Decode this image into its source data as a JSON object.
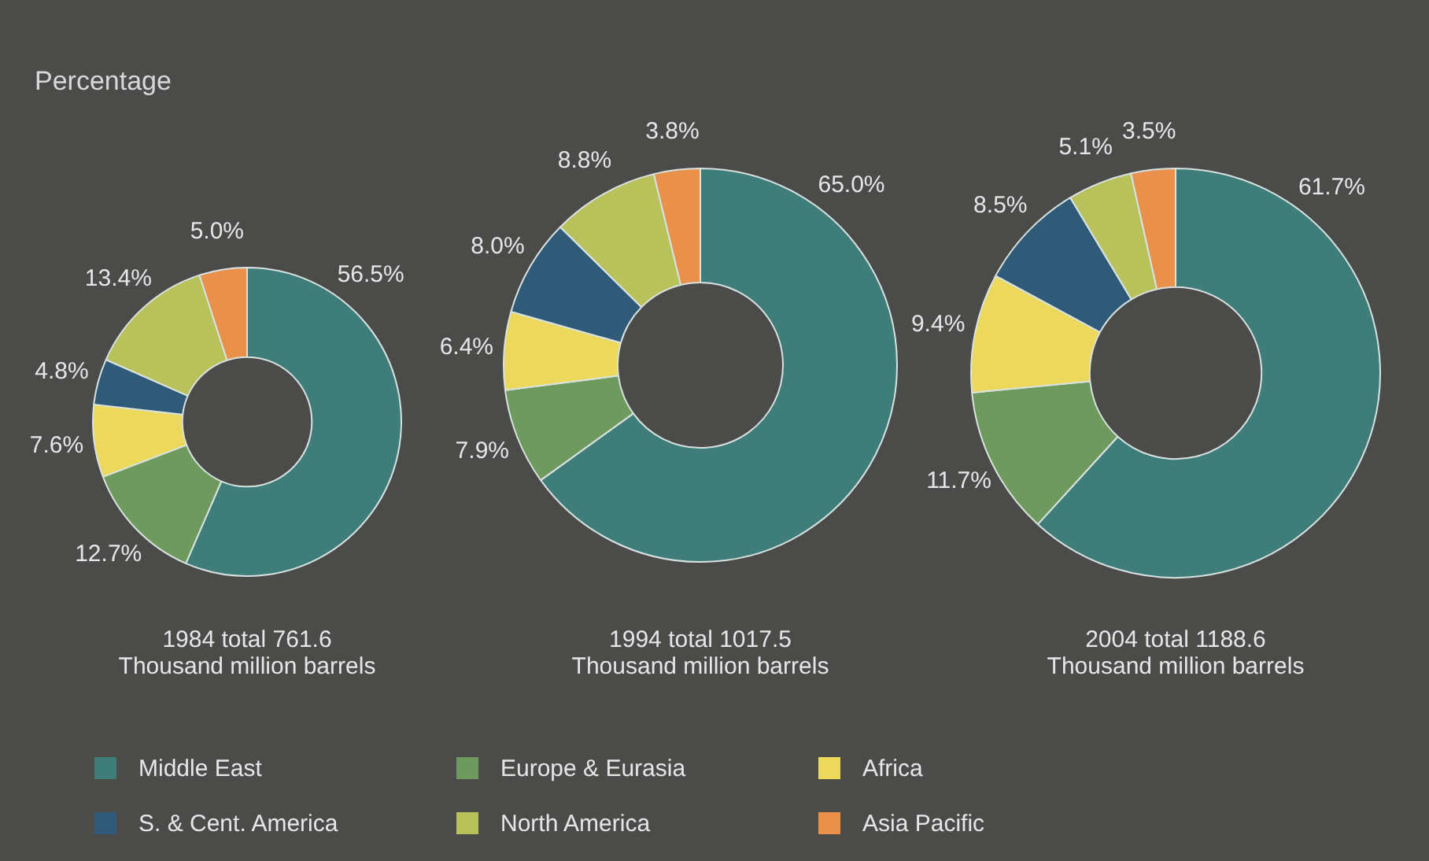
{
  "chart_data": {
    "type": "donut",
    "title": "Percentage",
    "legend": "bottom",
    "categories": [
      "Middle East",
      "Europe & Eurasia",
      "Africa",
      "S. & Cent. America",
      "North America",
      "Asia Pacific"
    ],
    "colors": [
      "#3f7d7a",
      "#6e9a5e",
      "#ecd95c",
      "#2f5b78",
      "#b9c15b",
      "#e9904b"
    ],
    "series": [
      {
        "name": "1984 total 761.6\nThousand million barrels",
        "values": [
          56.5,
          12.7,
          7.6,
          4.8,
          13.4,
          5.0
        ],
        "value_labels": [
          "56.5%",
          "12.7%",
          "7.6%",
          "4.8%",
          "13.4%",
          "5.0%"
        ]
      },
      {
        "name": "1994 total 1017.5\nThousand million barrels",
        "values": [
          65.0,
          7.9,
          6.4,
          8.0,
          8.8,
          3.8
        ],
        "value_labels": [
          "65.0%",
          "7.9%",
          "6.4%",
          "8.0%",
          "8.8%",
          "3.8%"
        ]
      },
      {
        "name": "2004 total 1188.6\nThousand million barrels",
        "values": [
          61.7,
          11.7,
          9.4,
          8.5,
          5.1,
          3.5
        ],
        "value_labels": [
          "61.7%",
          "11.7%",
          "9.4%",
          "8.5%",
          "5.1%",
          "3.5%"
        ]
      }
    ]
  }
}
